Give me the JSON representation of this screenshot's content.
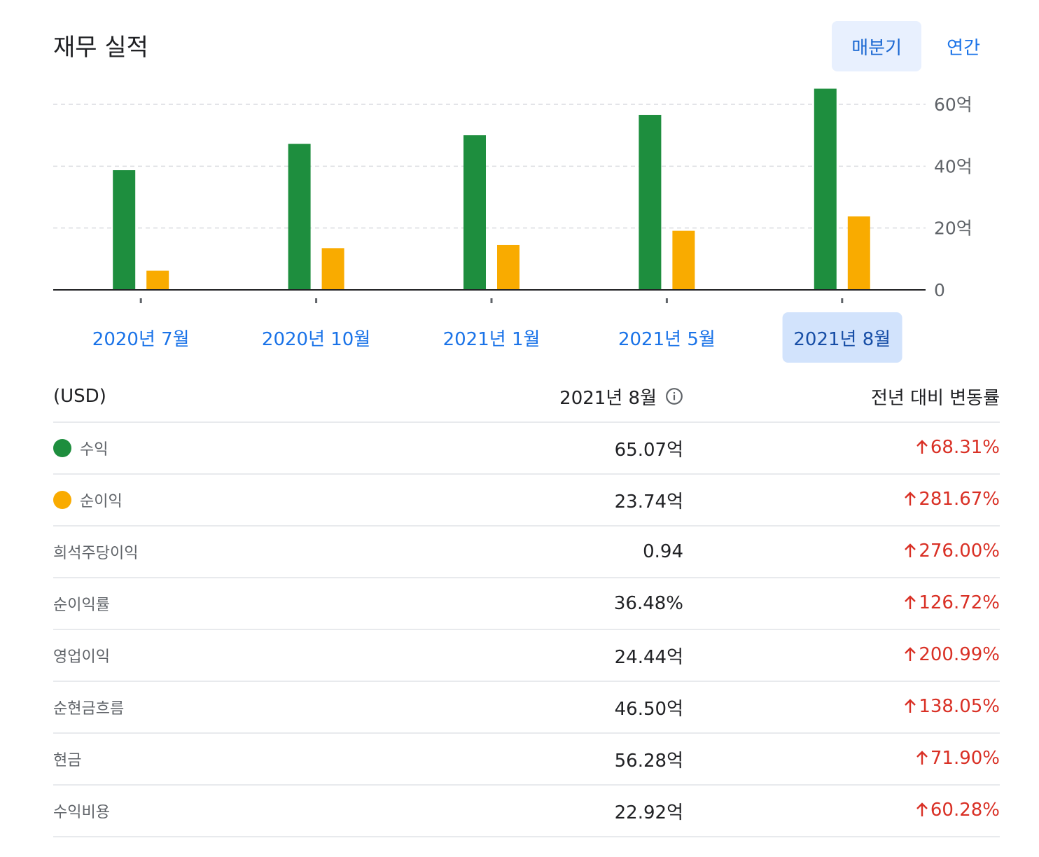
{
  "header": {
    "title": "재무 실적",
    "tabs": [
      {
        "label": "매분기",
        "active": true
      },
      {
        "label": "연간",
        "active": false
      }
    ]
  },
  "chart_data": {
    "type": "bar",
    "categories": [
      "2020년 7월",
      "2020년 10월",
      "2021년 1월",
      "2021년 5월",
      "2021년 8월"
    ],
    "series": [
      {
        "name": "수익",
        "color": "#1e8e3e",
        "values": [
          38.7,
          47.2,
          50.0,
          56.6,
          65.07
        ]
      },
      {
        "name": "순이익",
        "color": "#f9ab00",
        "values": [
          6.2,
          13.5,
          14.5,
          19.1,
          23.74
        ]
      }
    ],
    "ylim": [
      0,
      60
    ],
    "yticks": [
      {
        "value": 0,
        "label": "0"
      },
      {
        "value": 20,
        "label": "20억"
      },
      {
        "value": 40,
        "label": "40억"
      },
      {
        "value": 60,
        "label": "60억"
      }
    ],
    "selected_index": 4,
    "grid": true,
    "axis_side": "right"
  },
  "table": {
    "currency_label": "(USD)",
    "period_label": "2021년 8월",
    "change_label": "전년 대비 변동률",
    "info_icon": "info-icon",
    "up_icon": "arrow-upward-icon",
    "change_color": "#d93025",
    "rows": [
      {
        "label": "수익",
        "value": "65.07억",
        "change": "68.31%",
        "dot_color": "#1e8e3e"
      },
      {
        "label": "순이익",
        "value": "23.74억",
        "change": "281.67%",
        "dot_color": "#f9ab00"
      },
      {
        "label": "희석주당이익",
        "value": "0.94",
        "change": "276.00%"
      },
      {
        "label": "순이익률",
        "value": "36.48%",
        "change": "126.72%"
      },
      {
        "label": "영업이익",
        "value": "24.44억",
        "change": "200.99%"
      },
      {
        "label": "순현금흐름",
        "value": "46.50억",
        "change": "138.05%"
      },
      {
        "label": "현금",
        "value": "56.28억",
        "change": "71.90%"
      },
      {
        "label": "수익비용",
        "value": "22.92억",
        "change": "60.28%"
      }
    ]
  }
}
